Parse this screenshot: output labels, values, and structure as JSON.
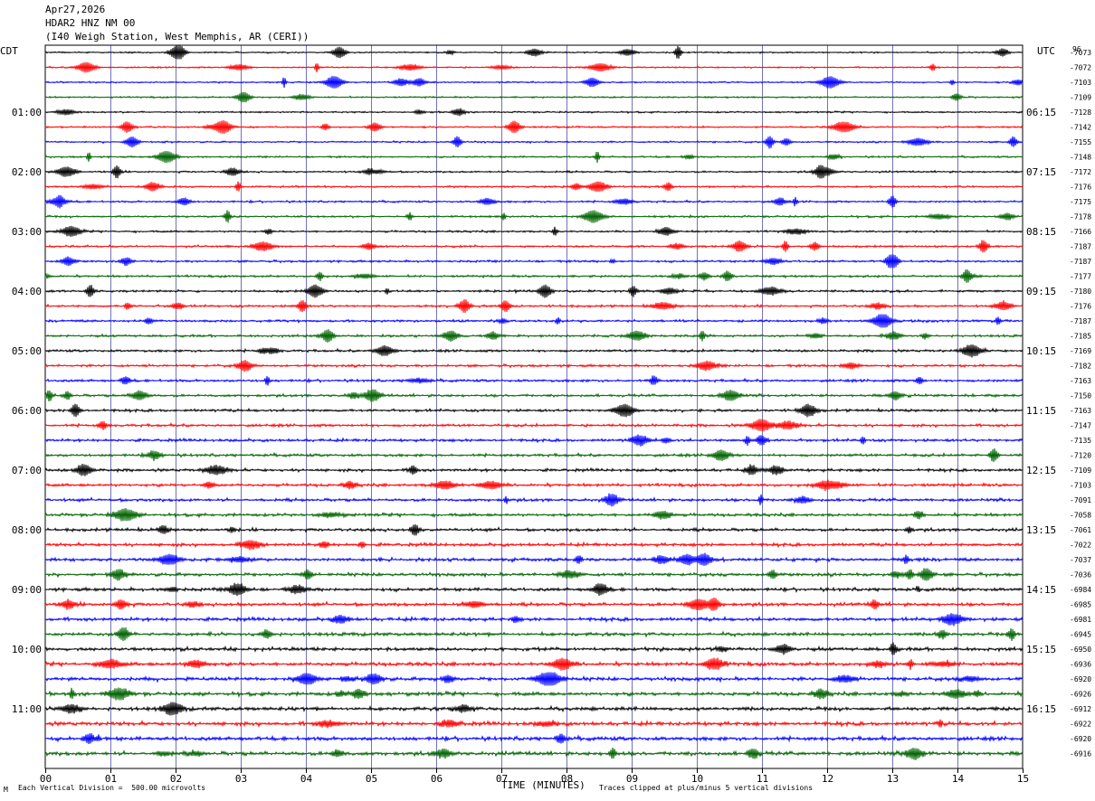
{
  "header": {
    "date": "Apr27,2026",
    "station": "HDAR2 HNZ NM 00",
    "location": "(I40 Weigh Station, West Memphis, AR (CERI))"
  },
  "left_axis_label": "CDT",
  "right_axis_label": "UTC",
  "right_corner_label": "96",
  "footer": {
    "scale_note": "Each Vertical Division =  500.00 microvolts",
    "corner_mark": "M",
    "clip_note": "Traces clipped at plus/minus 5 vertical divisions"
  },
  "colors": {
    "trace_cycle": [
      "#000000",
      "#ff0000",
      "#0000ff",
      "#006400"
    ],
    "grid": "#000080"
  },
  "chart_data": {
    "type": "line",
    "title": "",
    "xlabel": "TIME (MINUTES)",
    "ylabel": "",
    "xlim": [
      0,
      15
    ],
    "x_ticks": [
      "00",
      "01",
      "02",
      "03",
      "04",
      "05",
      "06",
      "07",
      "08",
      "09",
      "10",
      "11",
      "12",
      "13",
      "14",
      "15"
    ],
    "left_time_labels": [
      {
        "row": 4,
        "label": "01:00"
      },
      {
        "row": 8,
        "label": "02:00"
      },
      {
        "row": 12,
        "label": "03:00"
      },
      {
        "row": 16,
        "label": "04:00"
      },
      {
        "row": 20,
        "label": "05:00"
      },
      {
        "row": 24,
        "label": "06:00"
      },
      {
        "row": 28,
        "label": "07:00"
      },
      {
        "row": 32,
        "label": "08:00"
      },
      {
        "row": 36,
        "label": "09:00"
      },
      {
        "row": 40,
        "label": "10:00"
      },
      {
        "row": 44,
        "label": "11:00"
      }
    ],
    "right_time_labels": [
      {
        "row": 4,
        "label": "06:15"
      },
      {
        "row": 8,
        "label": "07:15"
      },
      {
        "row": 12,
        "label": "08:15"
      },
      {
        "row": 16,
        "label": "09:15"
      },
      {
        "row": 20,
        "label": "10:15"
      },
      {
        "row": 24,
        "label": "11:15"
      },
      {
        "row": 28,
        "label": "12:15"
      },
      {
        "row": 32,
        "label": "13:15"
      },
      {
        "row": 36,
        "label": "14:15"
      },
      {
        "row": 40,
        "label": "15:15"
      },
      {
        "row": 44,
        "label": "16:15"
      }
    ],
    "trace_offsets": [
      "-7073",
      "-7072",
      "-7103",
      "-7109",
      "-7128",
      "-7142",
      "-7155",
      "-7148",
      "-7172",
      "-7176",
      "-7175",
      "-7178",
      "-7166",
      "-7187",
      "-7187",
      "-7177",
      "-7180",
      "-7176",
      "-7187",
      "-7185",
      "-7169",
      "-7182",
      "-7163",
      "-7150",
      "-7163",
      "-7147",
      "-7135",
      "-7120",
      "-7109",
      "-7103",
      "-7091",
      "-7058",
      "-7061",
      "-7022",
      "-7037",
      "-7036",
      "-6984",
      "-6985",
      "-6981",
      "-6945",
      "-6950",
      "-6936",
      "-6920",
      "-6926",
      "-6912",
      "-6922",
      "-6920",
      "-6916"
    ],
    "trace_count": 48
  }
}
